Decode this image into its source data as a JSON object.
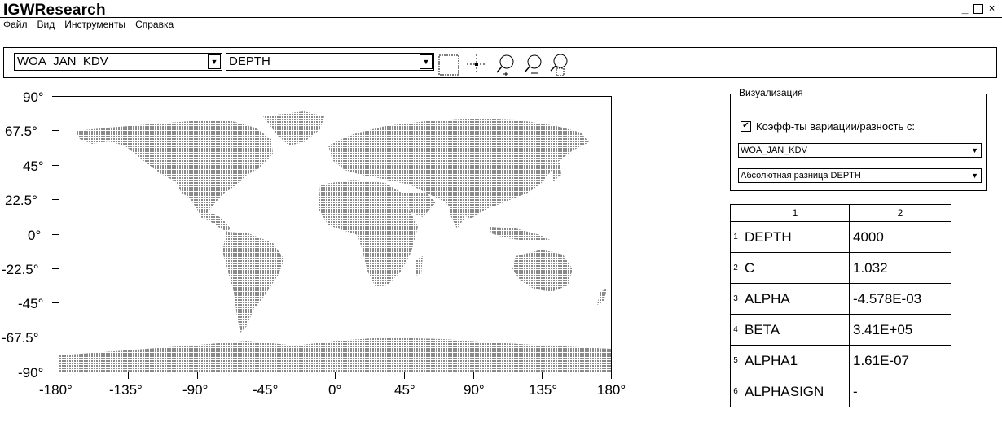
{
  "window": {
    "title": "IGWResearch",
    "controls": {
      "minimize": "_",
      "maximize": "□",
      "close": "×"
    }
  },
  "menu": [
    "Файл",
    "Вид",
    "Инструменты",
    "Справка"
  ],
  "toolbar": {
    "dataset_select": "WOA_JAN_KDV",
    "field_select": "DEPTH",
    "tools": [
      "select-rect-icon",
      "crosshair-icon",
      "zoom-in-icon",
      "zoom-out-icon",
      "zoom-rect-icon"
    ]
  },
  "map": {
    "y_ticks": [
      "90°",
      "67.5°",
      "45°",
      "22.5°",
      "0°",
      "-22.5°",
      "-45°",
      "-67.5°",
      "-90°"
    ],
    "x_ticks": [
      "-180°",
      "-135°",
      "-90°",
      "-45°",
      "0°",
      "45°",
      "90°",
      "135°",
      "180°"
    ],
    "xlim": [
      -180,
      180
    ],
    "ylim": [
      -90,
      90
    ],
    "land_color": "#9a9a9a"
  },
  "visualization": {
    "legend": "Визуализация",
    "checkbox_label": "Коэфф-ты вариации/разность с:",
    "checkbox_checked": true,
    "compare_dataset": "WOA_JAN_KDV",
    "compare_mode": "Абсолютная разница DEPTH"
  },
  "table": {
    "headers": [
      "1",
      "2"
    ],
    "rows": [
      {
        "index": "1",
        "name": "DEPTH",
        "value": "4000"
      },
      {
        "index": "2",
        "name": "C",
        "value": "1.032"
      },
      {
        "index": "3",
        "name": "ALPHA",
        "value": "-4.578E-03"
      },
      {
        "index": "4",
        "name": "BETA",
        "value": "3.41E+05"
      },
      {
        "index": "5",
        "name": "ALPHA1",
        "value": "1.61E-07"
      },
      {
        "index": "6",
        "name": "ALPHASIGN",
        "value": "-"
      }
    ]
  }
}
